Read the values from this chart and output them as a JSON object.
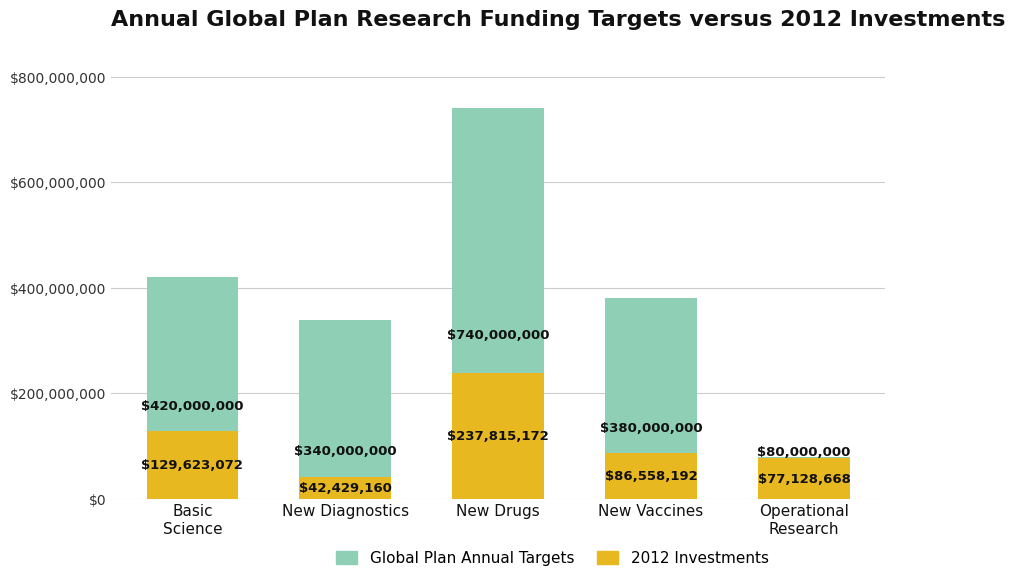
{
  "title": "Annual Global Plan Research Funding Targets versus 2012 Investments",
  "categories": [
    "Basic\nScience",
    "New Diagnostics",
    "New Drugs",
    "New Vaccines",
    "Operational\nResearch"
  ],
  "global_plan_targets": [
    420000000,
    340000000,
    740000000,
    380000000,
    80000000
  ],
  "investments_2012": [
    129623072,
    42429160,
    237815172,
    86558192,
    77128668
  ],
  "target_labels": [
    "$420,000,000",
    "$340,000,000",
    "$740,000,000",
    "$380,000,000",
    "$80,000,000"
  ],
  "investment_labels": [
    "$129,623,072",
    "$42,429,160",
    "$237,815,172",
    "$86,558,192",
    "$77,128,668"
  ],
  "color_target": "#8ecfb5",
  "color_investment": "#e8b820",
  "background_color": "#ffffff",
  "ylim": [
    0,
    850000000
  ],
  "yticks": [
    0,
    200000000,
    400000000,
    600000000,
    800000000
  ],
  "ytick_labels": [
    "$0",
    "$200,000,000",
    "$400,000,000",
    "$600,000,000",
    "$800,000,000"
  ],
  "legend_target": "Global Plan Annual Targets",
  "legend_investment": "2012 Investments",
  "title_fontsize": 16,
  "label_fontsize": 9.5,
  "tick_fontsize": 10,
  "legend_fontsize": 11
}
